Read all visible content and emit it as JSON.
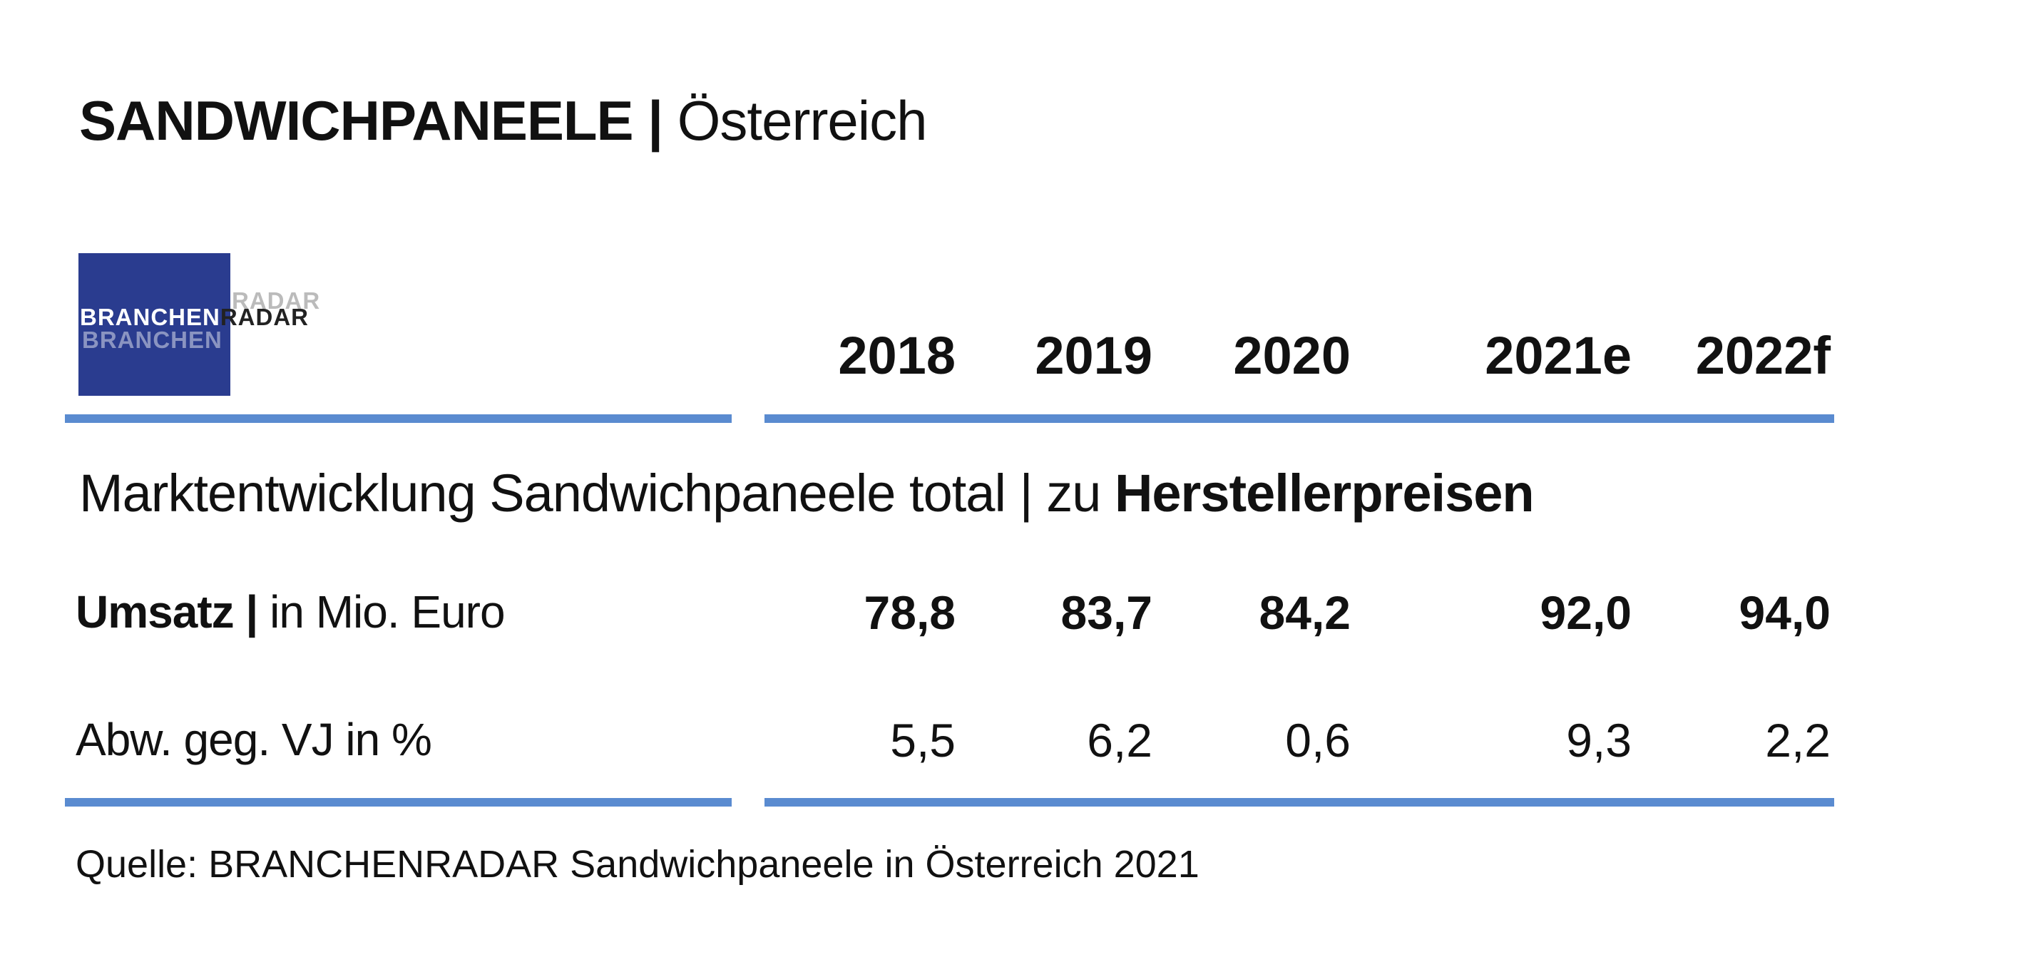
{
  "title": {
    "main": "SANDWICHPANEELE |",
    "sub": "Österreich"
  },
  "logo": {
    "part1": "BRANCHEN",
    "part2": "RADAR",
    "box_color": "#2a3c8f"
  },
  "rule_color": "#5a8bd0",
  "years": [
    "2018",
    "2019",
    "2020",
    "2021e",
    "2022f"
  ],
  "section": {
    "text": "Marktentwicklung Sandwichpaneele total | zu",
    "bold": "Herstellerpreisen"
  },
  "rows": [
    {
      "label_bold": "Umsatz |",
      "label": "in Mio. Euro",
      "values": [
        "78,8",
        "83,7",
        "84,2",
        "92,0",
        "94,0"
      ]
    },
    {
      "label_bold": "",
      "label": "Abw. geg. VJ in %",
      "values": [
        "5,5",
        "6,2",
        "0,6",
        "9,3",
        "2,2"
      ]
    }
  ],
  "source": "Quelle: BRANCHENRADAR Sandwichpaneele in Österreich 2021"
}
